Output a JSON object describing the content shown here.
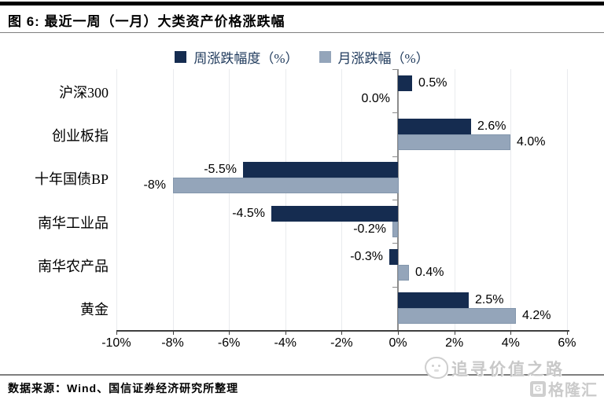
{
  "figure": {
    "title": "图 6: 最近一周（一月）大类资产价格涨跌幅",
    "source": "数据来源：Wind、国信证券经济研究所整理"
  },
  "watermark": {
    "brand": "追寻价值之路",
    "logo_letter": "G",
    "logo_text": "格隆汇"
  },
  "colors": {
    "week_bar": "#152c50",
    "month_bar": "#94a5ba",
    "legend_text": "#1f3a5c",
    "watermark": "#c8c8c8"
  },
  "chart_data": {
    "type": "bar",
    "orientation": "horizontal",
    "title": "最近一周（一月）大类资产价格涨跌幅",
    "categories": [
      "沪深300",
      "创业板指",
      "十年国债BP",
      "南华工业品",
      "南华农产品",
      "黄金"
    ],
    "series": [
      {
        "name": "周涨跌幅度（%）",
        "color": "#152c50",
        "values": [
          0.5,
          2.6,
          -5.5,
          -4.5,
          -0.3,
          2.5
        ],
        "labels": [
          "0.5%",
          "2.6%",
          "-5.5%",
          "-4.5%",
          "-0.3%",
          "2.5%"
        ]
      },
      {
        "name": "月涨跌幅（%）",
        "color": "#94a5ba",
        "values": [
          0.0,
          4.0,
          -8,
          -0.2,
          0.4,
          4.2
        ],
        "labels": [
          "0.0%",
          "4.0%",
          "-8%",
          "-0.2%",
          "0.4%",
          "4.2%"
        ]
      }
    ],
    "x_axis": {
      "ticks": [
        "-10%",
        "-8%",
        "-6%",
        "-4%",
        "-2%",
        "0%",
        "2%",
        "4%",
        "6%"
      ],
      "tick_values": [
        -10,
        -8,
        -6,
        -4,
        -2,
        0,
        2,
        4,
        6
      ],
      "min": -10,
      "max": 6,
      "unit": "%"
    },
    "legend_position": "top",
    "grid": true
  }
}
